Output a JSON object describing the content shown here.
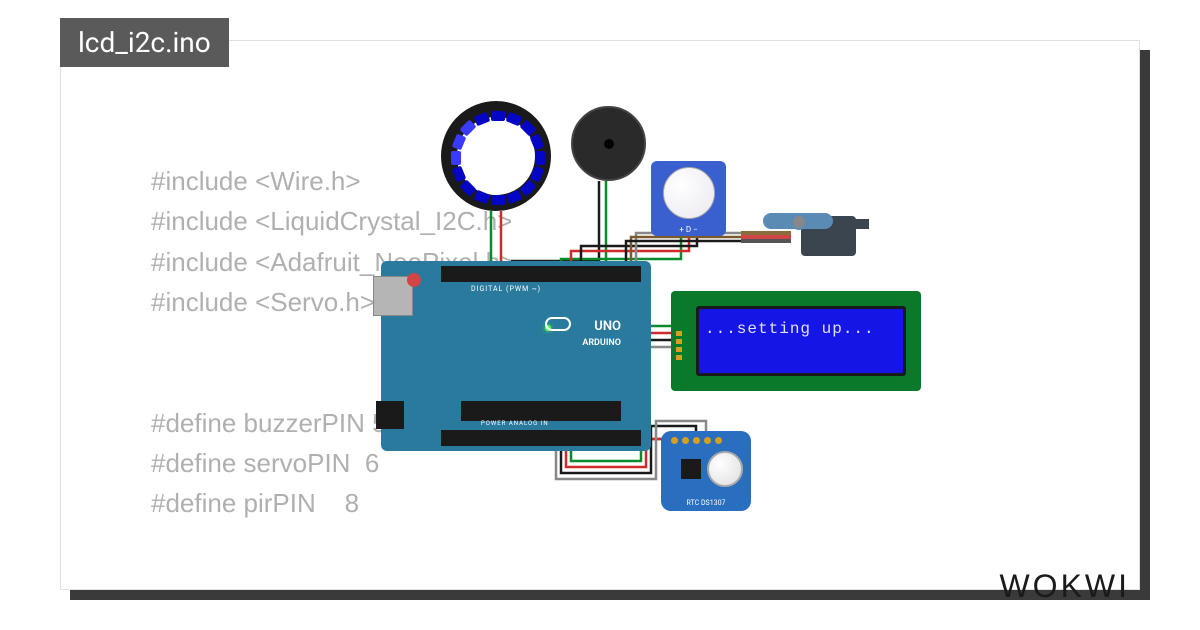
{
  "tab": {
    "filename": "lcd_i2c.ino"
  },
  "code": {
    "lines": [
      "#include <Wire.h>",
      "#include <LiquidCrystal_I2C.h>",
      "#include <Adafruit_NeoPixel.h>",
      "#include <Servo.h>",
      "",
      "",
      "#define buzzerPIN 5",
      "#define servoPIN  6",
      "#define pirPIN    8"
    ]
  },
  "logo": {
    "text": "WOKWI"
  },
  "arduino": {
    "brand": "ARDUINO",
    "model": "UNO",
    "top_label": "DIGITAL (PWM ~)",
    "bottom_label": "POWER        ANALOG IN",
    "board_color": "#2a7a9d"
  },
  "lcd": {
    "text": "...setting up...",
    "bg_color": "#1515e5",
    "text_color": "#e0e0ff",
    "pcb_color": "#0a7a2a"
  },
  "ring": {
    "led_count": 16,
    "off_color": "#0505c5",
    "on_color": "#3a3aff",
    "lit_indices": [
      12,
      13,
      14
    ]
  },
  "pir": {
    "label": "+ D −"
  },
  "rtc": {
    "label": "RTC  DS1307"
  },
  "wire_colors": {
    "red": "#d02a2a",
    "green": "#0a8a2a",
    "black": "#1a1a1a",
    "grey": "#888888",
    "brown": "#7a5a2a"
  }
}
